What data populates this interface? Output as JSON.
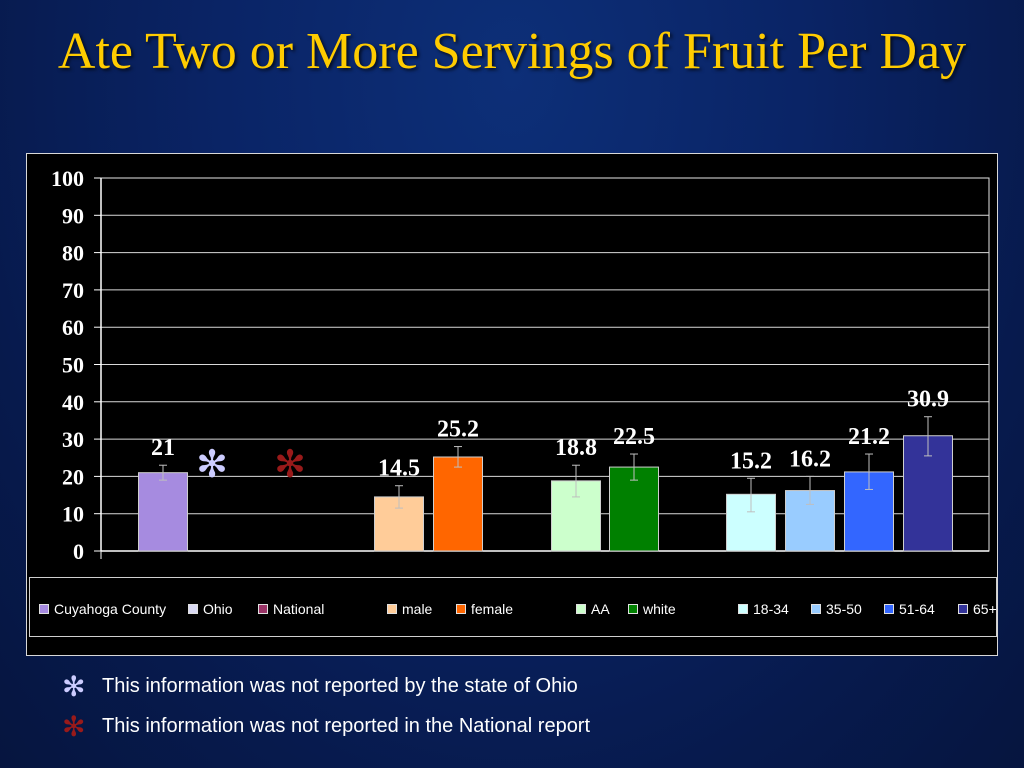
{
  "slide": {
    "title": "Ate Two or More Servings of Fruit Per Day"
  },
  "chart_data": {
    "type": "bar",
    "title": "",
    "xlabel": "",
    "ylabel": "",
    "ylim": [
      0,
      100
    ],
    "yticks": [
      "0",
      "10",
      "20",
      "30",
      "40",
      "50",
      "60",
      "70",
      "80",
      "90",
      "100"
    ],
    "grid": true,
    "legend_position": "bottom",
    "categories": [
      "Cuyahoga County",
      "Ohio",
      "National",
      "male",
      "female",
      "AA",
      "white",
      "18-34",
      "35-50",
      "51-64",
      "65+"
    ],
    "values": [
      21,
      null,
      null,
      14.5,
      25.2,
      18.8,
      22.5,
      15.2,
      16.2,
      21.2,
      30.9
    ],
    "value_labels": [
      "21",
      "",
      "",
      "14.5",
      "25.2",
      "18.8",
      "22.5",
      "15.2",
      "16.2",
      "21.2",
      "30.9"
    ],
    "error_low": [
      19,
      null,
      null,
      11.5,
      22.5,
      14.5,
      19,
      10.5,
      12.5,
      16.5,
      25.5
    ],
    "error_high": [
      23,
      null,
      null,
      17.5,
      28,
      23,
      26,
      19.5,
      20,
      26,
      36
    ],
    "colors": [
      "#a68be0",
      "#d9d9f3",
      "#993366",
      "#ffcc99",
      "#ff6600",
      "#ccffcc",
      "#008000",
      "#ccffff",
      "#99ccff",
      "#3366ff",
      "#333399"
    ],
    "not_reported_markers": [
      {
        "category": "Ohio",
        "symbol": "✻",
        "color": "#ccccff"
      },
      {
        "category": "National",
        "symbol": "✻",
        "color": "#991a1a"
      }
    ]
  },
  "legend": {
    "items": [
      {
        "label": "Cuyahoga County",
        "color": "#a68be0"
      },
      {
        "label": "Ohio",
        "color": "#d9d9f3"
      },
      {
        "label": "National",
        "color": "#993366"
      },
      {
        "label": "male",
        "color": "#ffcc99"
      },
      {
        "label": "female",
        "color": "#ff6600"
      },
      {
        "label": "AA",
        "color": "#ccffcc"
      },
      {
        "label": "white",
        "color": "#008000"
      },
      {
        "label": "18-34",
        "color": "#ccffff"
      },
      {
        "label": "35-50",
        "color": "#99ccff"
      },
      {
        "label": "51-64",
        "color": "#3366ff"
      },
      {
        "label": "65+",
        "color": "#333399"
      }
    ]
  },
  "footnotes": [
    {
      "symbol": "✻",
      "color": "#ccccff",
      "text": "This information was not reported by the state of Ohio"
    },
    {
      "symbol": "✻",
      "color": "#991a1a",
      "text": "This information was not reported in the National report"
    }
  ]
}
